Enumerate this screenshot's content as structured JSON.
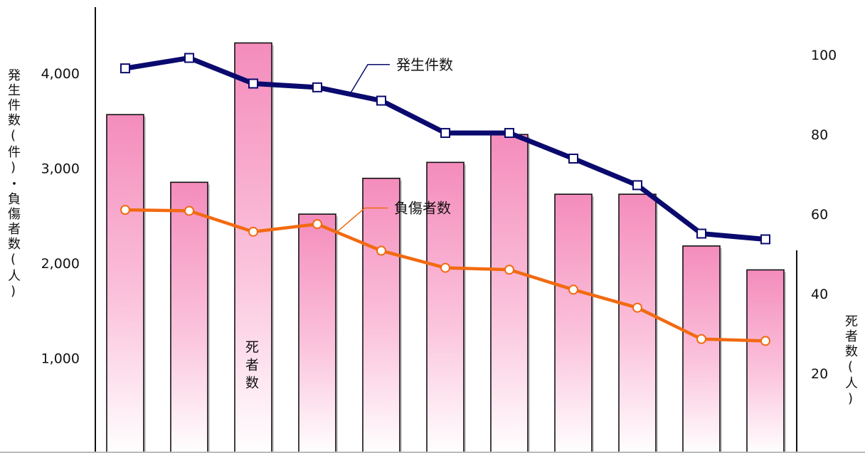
{
  "chart_data": {
    "type": "bar+line",
    "left_axis": {
      "label": "発生件数(件)・負傷者数(人)",
      "ticks": [
        1000,
        2000,
        3000,
        4000
      ],
      "tick_labels": [
        "1,000",
        "2,000",
        "3,000",
        "4,000"
      ],
      "range": [
        0,
        4650
      ]
    },
    "right_axis": {
      "label": "死者数(人)",
      "ticks": [
        20,
        40,
        60,
        80,
        100
      ],
      "tick_labels": [
        "20",
        "40",
        "60",
        "80",
        "100"
      ],
      "range": [
        0,
        107
      ]
    },
    "series": [
      {
        "name": "発生件数",
        "type": "line",
        "axis": "left",
        "color": "#0a0a6e",
        "marker": "square",
        "values": [
          4050,
          4160,
          3890,
          3850,
          3710,
          3370,
          3370,
          3100,
          2820,
          2310,
          2250
        ]
      },
      {
        "name": "負傷者数",
        "type": "line",
        "axis": "left",
        "color": "#f26a10",
        "marker": "circle",
        "values": [
          2560,
          2550,
          2330,
          2410,
          2130,
          1950,
          1930,
          1720,
          1530,
          1200,
          1180
        ]
      },
      {
        "name": "死者数",
        "type": "bar",
        "axis": "right",
        "color": "#f79ac4",
        "values": [
          85,
          68,
          103,
          60,
          69,
          73,
          80,
          65,
          65,
          52,
          46
        ]
      }
    ]
  }
}
